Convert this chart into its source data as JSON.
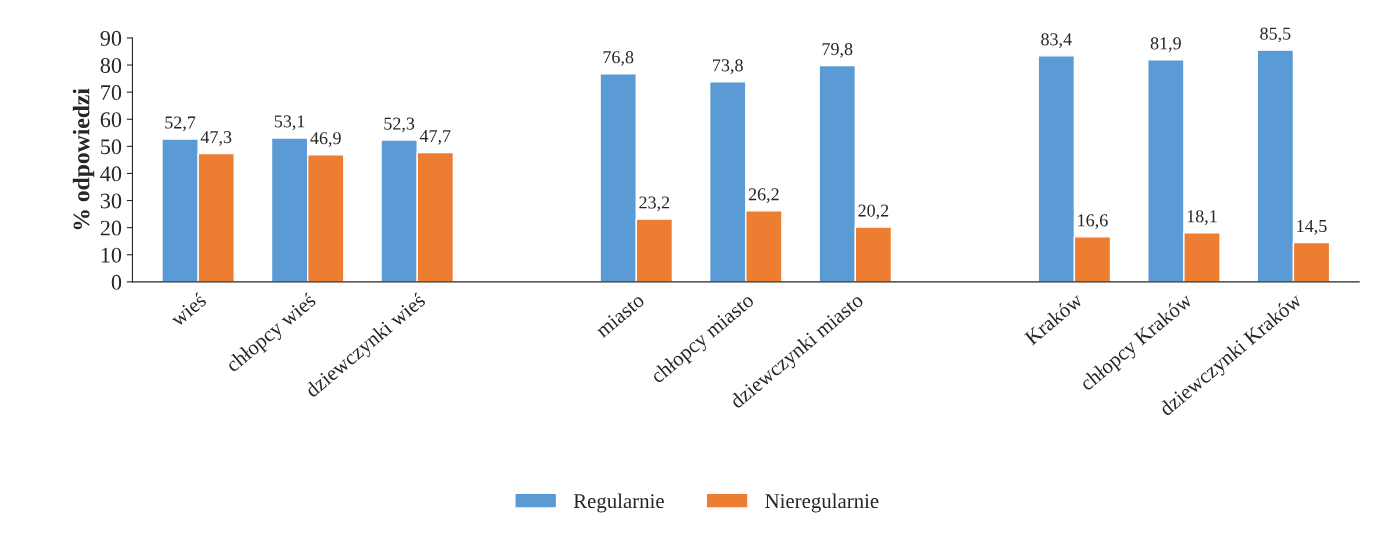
{
  "chart_data": {
    "type": "bar",
    "ylabel": "% odpowiedzi",
    "categories": [
      "wieś",
      "chłopcy wieś",
      "dziewczynki wieś",
      null,
      "miasto",
      "chłopcy miasto",
      "dziewczynki miasto",
      null,
      "Kraków",
      "chłopcy Kraków",
      "dziewczynki Kraków"
    ],
    "series": [
      {
        "name": "Regularnie",
        "color": "#5b9bd5",
        "values": [
          52.7,
          53.1,
          52.3,
          null,
          76.8,
          73.8,
          79.8,
          null,
          83.4,
          81.9,
          85.5
        ],
        "value_labels": [
          "52,7",
          "53,1",
          "52,3",
          null,
          "76,8",
          "73,8",
          "79,8",
          null,
          "83,4",
          "81,9",
          "85,5"
        ]
      },
      {
        "name": "Nieregularnie",
        "color": "#ed7d31",
        "values": [
          47.3,
          46.9,
          47.7,
          null,
          23.2,
          26.2,
          20.2,
          null,
          16.6,
          18.1,
          14.5
        ],
        "value_labels": [
          "47,3",
          "46,9",
          "47,7",
          null,
          "23,2",
          "26,2",
          "20,2",
          null,
          "16,6",
          "18,1",
          "14,5"
        ]
      }
    ],
    "ylim": [
      0,
      90
    ],
    "yticks": [
      0,
      10,
      20,
      30,
      40,
      50,
      60,
      70,
      80,
      90
    ],
    "grid": false,
    "legend": "bottom"
  }
}
